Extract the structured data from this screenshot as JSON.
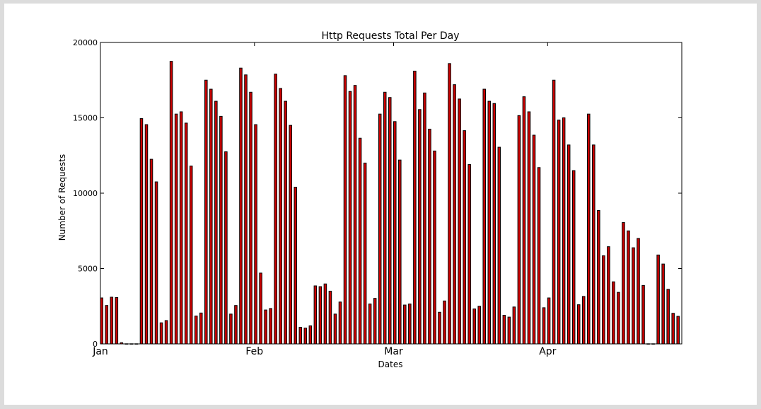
{
  "chart_data": {
    "type": "bar",
    "title": "Http Requests Total Per Day",
    "xlabel": "Dates",
    "ylabel": "Number of Requests",
    "ylim": [
      0,
      20000
    ],
    "yticks": [
      0,
      5000,
      10000,
      15000,
      20000
    ],
    "xticks": [
      {
        "label": "Jan",
        "index": 0
      },
      {
        "label": "Feb",
        "index": 31
      },
      {
        "label": "Mar",
        "index": 59
      },
      {
        "label": "Apr",
        "index": 90
      }
    ],
    "bar_color": "#cc0000",
    "edge_color": "#000000",
    "grid": false,
    "values": [
      3050,
      2550,
      3100,
      3080,
      80,
      10,
      10,
      10,
      14950,
      14550,
      12250,
      10750,
      1400,
      1550,
      18750,
      15250,
      15400,
      14650,
      11800,
      1850,
      2050,
      17500,
      16900,
      16100,
      15100,
      12750,
      1980,
      2550,
      18300,
      17850,
      16700,
      14550,
      4700,
      2250,
      2350,
      17900,
      16950,
      16100,
      14500,
      10400,
      1100,
      1050,
      1200,
      3850,
      3800,
      3980,
      3500,
      1980,
      2780,
      17800,
      16750,
      17150,
      13650,
      12000,
      2650,
      3020,
      15250,
      16700,
      16350,
      14750,
      12200,
      2580,
      2650,
      18100,
      15550,
      16650,
      14250,
      12800,
      2100,
      2850,
      18600,
      17200,
      16250,
      14150,
      11900,
      2320,
      2500,
      16900,
      16100,
      15950,
      13050,
      1900,
      1780,
      2450,
      15150,
      16400,
      15400,
      13850,
      11700,
      2400,
      3050,
      17500,
      14850,
      15000,
      13200,
      11500,
      2600,
      3150,
      15250,
      13200,
      8850,
      5850,
      6450,
      4120,
      3420,
      8050,
      7500,
      6380,
      7000,
      3880,
      10,
      10,
      5900,
      5300,
      3620,
      2030,
      1830
    ]
  }
}
